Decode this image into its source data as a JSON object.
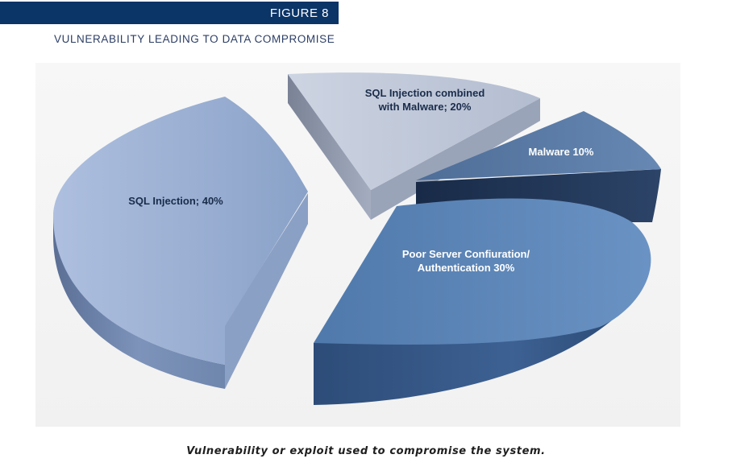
{
  "figure": {
    "label": "FIGURE 8",
    "title": "VULNERABILITY LEADING TO DATA COMPROMISE",
    "caption": "Vulnerability or exploit used to compromise the system."
  },
  "colors": {
    "banner": "#0b3467",
    "sql_injection": "#9bb0d2",
    "sql_injection_malware": "#c3ccdd",
    "malware": "#5d7da6",
    "poor_server": "#5e86b8"
  },
  "chart_data": {
    "type": "pie",
    "title": "VULNERABILITY LEADING TO DATA COMPROMISE",
    "slices": [
      {
        "label": "SQL Injection; 40%",
        "lines": [
          "SQL Injection; 40%"
        ],
        "value": 40
      },
      {
        "label": "SQL Injection combined with Malware; 20%",
        "lines": [
          "SQL Injection combined",
          "with Malware; 20%"
        ],
        "value": 20
      },
      {
        "label": "Malware 10%",
        "lines": [
          "Malware 10%"
        ],
        "value": 10
      },
      {
        "label": "Poor Server Confiuration/ Authentication 30%",
        "lines": [
          "Poor Server Confiuration/",
          "Authentication 30%"
        ],
        "value": 30
      }
    ]
  }
}
